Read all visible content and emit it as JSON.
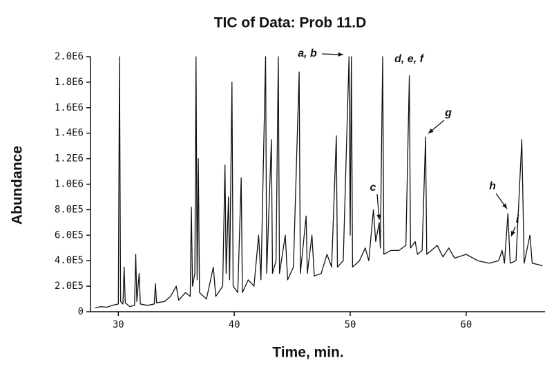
{
  "chart_data": {
    "type": "line",
    "title": "TIC of Data:  Prob 11.D",
    "xlabel": "Time, min.",
    "ylabel": "Abundance",
    "x": [
      28.0,
      28.5,
      29.0,
      29.5,
      30.0,
      30.1,
      30.2,
      30.4,
      30.5,
      30.6,
      31.0,
      31.4,
      31.5,
      31.6,
      31.8,
      31.9,
      32.5,
      33.1,
      33.2,
      33.3,
      34.0,
      34.5,
      35.0,
      35.2,
      35.8,
      36.2,
      36.3,
      36.4,
      36.6,
      36.7,
      36.8,
      36.9,
      37.0,
      37.6,
      38.2,
      38.4,
      39.0,
      39.2,
      39.3,
      39.5,
      39.6,
      39.8,
      39.9,
      40.3,
      40.6,
      40.7,
      41.2,
      41.7,
      42.1,
      42.3,
      42.7,
      42.8,
      43.2,
      43.3,
      43.6,
      43.8,
      43.9,
      44.4,
      44.6,
      45.1,
      45.6,
      45.7,
      46.2,
      46.3,
      46.7,
      46.9,
      47.5,
      48.0,
      48.4,
      48.8,
      48.9,
      49.4,
      49.9,
      50.0,
      50.1,
      50.2,
      50.8,
      51.3,
      51.6,
      52.0,
      52.2,
      52.5,
      52.6,
      52.8,
      52.9,
      53.5,
      54.2,
      54.8,
      55.1,
      55.2,
      55.6,
      55.8,
      56.2,
      56.5,
      56.6,
      57.0,
      57.5,
      58.0,
      58.5,
      59.0,
      60.0,
      61.0,
      62.0,
      62.8,
      63.1,
      63.3,
      63.6,
      63.8,
      64.3,
      64.8,
      65.0,
      65.5,
      65.7,
      66.2,
      66.6
    ],
    "series": [
      {
        "name": "TIC",
        "color": "#111111",
        "values": [
          30000,
          40000,
          35000,
          50000,
          60000,
          2000000,
          80000,
          60000,
          350000,
          70000,
          40000,
          50000,
          450000,
          80000,
          300000,
          60000,
          50000,
          60000,
          220000,
          70000,
          80000,
          120000,
          200000,
          90000,
          150000,
          120000,
          820000,
          200000,
          300000,
          2000000,
          250000,
          1200000,
          150000,
          100000,
          350000,
          120000,
          200000,
          1150000,
          300000,
          900000,
          250000,
          1800000,
          200000,
          150000,
          1050000,
          150000,
          250000,
          200000,
          600000,
          250000,
          2000000,
          300000,
          1350000,
          300000,
          400000,
          2000000,
          300000,
          600000,
          250000,
          350000,
          1880000,
          300000,
          750000,
          300000,
          600000,
          280000,
          300000,
          450000,
          350000,
          1380000,
          350000,
          400000,
          2000000,
          600000,
          2000000,
          350000,
          400000,
          500000,
          400000,
          800000,
          550000,
          700000,
          500000,
          2000000,
          450000,
          480000,
          480000,
          520000,
          1850000,
          500000,
          550000,
          450000,
          480000,
          1370000,
          450000,
          480000,
          520000,
          430000,
          500000,
          420000,
          450000,
          400000,
          380000,
          400000,
          480000,
          380000,
          770000,
          380000,
          400000,
          1350000,
          380000,
          600000,
          380000,
          370000,
          360000
        ]
      }
    ],
    "annotations": [
      "a, b",
      "c",
      "d, e, f",
      "g",
      "h",
      "i"
    ],
    "xlim": [
      27.6,
      66.8
    ],
    "xticks": [
      30,
      40,
      50,
      60
    ],
    "ylim": [
      0,
      2000000
    ],
    "yticks": [
      0,
      {
        "value": 200000,
        "label": "2.0E5"
      },
      {
        "value": 400000,
        "label": "4.0E5"
      },
      {
        "value": 600000,
        "label": "6.0E5"
      },
      {
        "value": 800000,
        "label": "8.0E5"
      },
      {
        "value": 1000000,
        "label": "1.0E6"
      },
      {
        "value": 1200000,
        "label": "1.2E6"
      },
      {
        "value": 1400000,
        "label": "1.4E6"
      },
      {
        "value": 1600000,
        "label": "1.6E6"
      },
      {
        "value": 1800000,
        "label": "1.8E6"
      },
      {
        "value": 2000000,
        "label": "2.0E6"
      }
    ],
    "grid": false
  }
}
